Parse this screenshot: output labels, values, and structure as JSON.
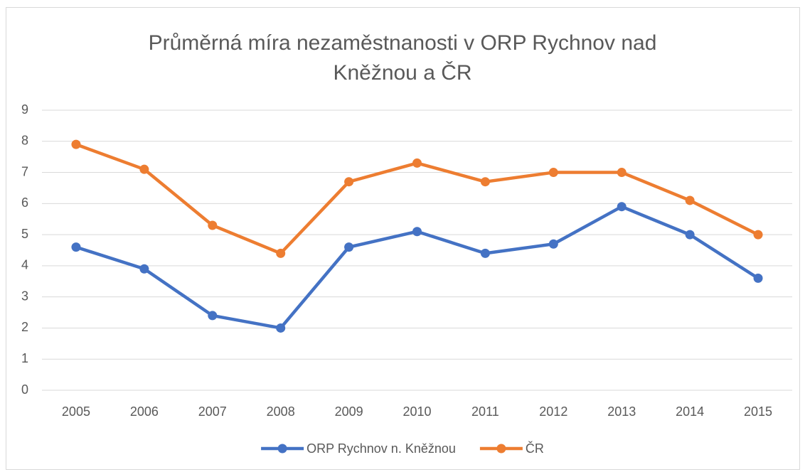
{
  "chart_data": {
    "type": "line",
    "title": "Průměrná míra nezaměstnanosti v ORP Rychnov nad Kněžnou a ČR",
    "categories": [
      "2005",
      "2006",
      "2007",
      "2008",
      "2009",
      "2010",
      "2011",
      "2012",
      "2013",
      "2014",
      "2015"
    ],
    "series": [
      {
        "name": "ORP Rychnov n. Kněžnou",
        "color": "#4472c4",
        "values": [
          4.6,
          3.9,
          2.4,
          2.0,
          4.6,
          5.1,
          4.4,
          4.7,
          5.9,
          5.0,
          3.6
        ]
      },
      {
        "name": "ČR",
        "color": "#ed7d31",
        "values": [
          7.9,
          7.1,
          5.3,
          4.4,
          6.7,
          7.3,
          6.7,
          7.0,
          7.0,
          6.1,
          5.0
        ]
      }
    ],
    "ylim": [
      0,
      9
    ],
    "yticks": [
      0,
      1,
      2,
      3,
      4,
      5,
      6,
      7,
      8,
      9
    ],
    "grid": true,
    "legend": "bottom"
  }
}
